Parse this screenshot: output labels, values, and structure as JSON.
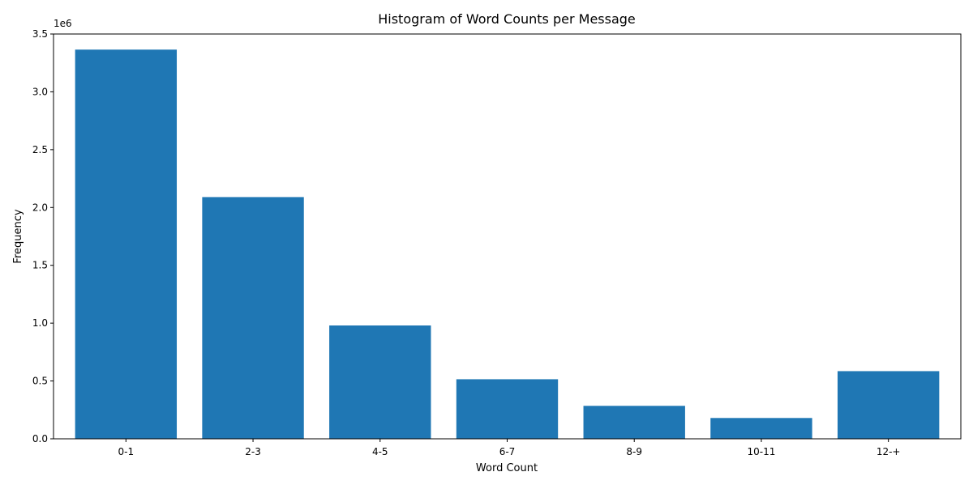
{
  "chart_data": {
    "type": "bar",
    "title": "Histogram of Word Counts per Message",
    "xlabel": "Word Count",
    "ylabel": "Frequency",
    "y_offset_label": "1e6",
    "categories": [
      "0-1",
      "2-3",
      "4-5",
      "6-7",
      "8-9",
      "10-11",
      "12-+"
    ],
    "values": [
      3365000,
      2090000,
      980000,
      515000,
      285000,
      180000,
      585000
    ],
    "ylim": [
      0,
      3500000
    ],
    "y_ticks": [
      0,
      500000,
      1000000,
      1500000,
      2000000,
      2500000,
      3000000,
      3500000
    ],
    "y_tick_labels": [
      "0.0",
      "0.5",
      "1.0",
      "1.5",
      "2.0",
      "2.5",
      "3.0",
      "3.5"
    ],
    "bar_color": "#1f77b4",
    "grid": false,
    "legend": "none"
  }
}
